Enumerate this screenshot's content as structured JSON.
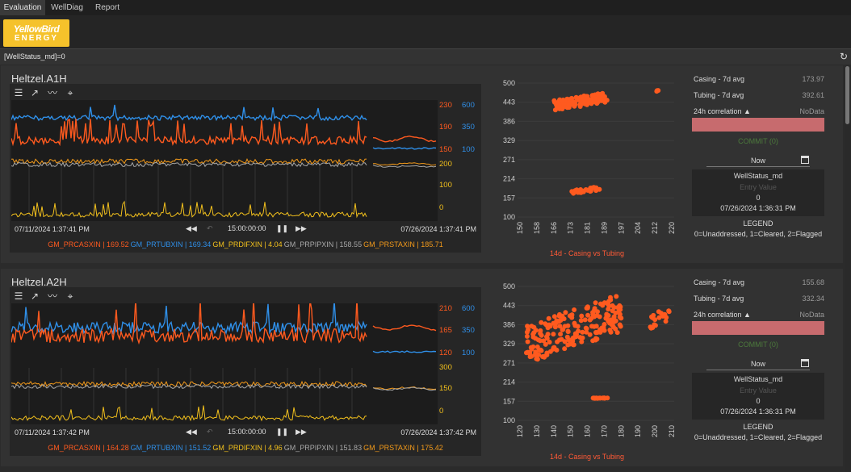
{
  "tabs": [
    {
      "label": "Evaluation",
      "active": true
    },
    {
      "label": "WellDiag",
      "active": false
    },
    {
      "label": "Report",
      "active": false
    }
  ],
  "logo": {
    "line1": "YellowBird",
    "line2": "ENERGY"
  },
  "filter": {
    "text": "[WellStatus_md]=0"
  },
  "colors": {
    "casing": "#ff5a1f",
    "tubing": "#2f8fe8",
    "difference": "#f2c01c",
    "pip": "#a8a8a8",
    "static": "#f39a1a"
  },
  "wells": [
    {
      "name": "Heltzel.A1H",
      "axis_red": [
        "230",
        "190",
        "150"
      ],
      "axis_blue": [
        "600",
        "350",
        "100"
      ],
      "axis_yel": [
        "200",
        "100",
        "0"
      ],
      "date_start": "07/11/2024  1:37:41 PM",
      "date_end": "07/26/2024  1:37:41 PM",
      "duration": "15:00:00:00",
      "legend": [
        {
          "text": "GM_PRCASXIN | 169.52",
          "color": "#ff5a1f"
        },
        {
          "text": "GM_PRTUBXIN | 169.34",
          "color": "#2f8fe8"
        },
        {
          "text": "GM_PRDIFXIN | 4.04",
          "color": "#f2c01c"
        },
        {
          "text": "GM_PRPIPXIN | 158.55",
          "color": "#a8a8a8"
        },
        {
          "text": "GM_PRSTAXIN | 185.71",
          "color": "#f39a1a"
        }
      ],
      "stats": [
        {
          "k": "Casing - 7d avg",
          "v": "173.97"
        },
        {
          "k": "Tubing - 7d avg",
          "v": "392.61"
        },
        {
          "k": "24h correlation ▲",
          "v": "NoData"
        }
      ],
      "commit": "COMMIT (0)",
      "now": "Now",
      "ws_label": "WellStatus_md",
      "ws_entry": "Entry Value",
      "ws_value": "0",
      "ws_date": "07/26/2024 1:36:31 PM",
      "legend_title": "LEGEND",
      "legend_text": "0=Unaddressed, 1=Cleared, 2=Flagged",
      "scatter_title": "14d - Casing vs Tubing",
      "chart_data": {
        "type": "scatter",
        "title": "14d - Casing vs Tubing",
        "x_ticks": [
          "150",
          "158",
          "166",
          "173",
          "181",
          "189",
          "197",
          "204",
          "212",
          "220"
        ],
        "y_ticks": [
          "500",
          "443",
          "386",
          "329",
          "271",
          "214",
          "157",
          "100"
        ],
        "xlim": [
          150,
          220
        ],
        "ylim": [
          100,
          500
        ],
        "clusters": [
          {
            "x": [
              166,
              190
            ],
            "y": [
              420,
              470
            ],
            "n": 120
          },
          {
            "x": [
              174,
              187
            ],
            "y": [
              170,
              190
            ],
            "n": 30
          },
          {
            "x": [
              211,
              213
            ],
            "y": [
              470,
              480
            ],
            "n": 3
          }
        ]
      }
    },
    {
      "name": "Heltzel.A2H",
      "axis_red": [
        "210",
        "165",
        "120"
      ],
      "axis_blue": [
        "600",
        "350",
        "100"
      ],
      "axis_yel": [
        "300",
        "150",
        "0"
      ],
      "date_start": "07/11/2024  1:37:42 PM",
      "date_end": "07/26/2024  1:37:42 PM",
      "duration": "15:00:00:00",
      "legend": [
        {
          "text": "GM_PRCASXIN | 164.28",
          "color": "#ff5a1f"
        },
        {
          "text": "GM_PRTUBXIN | 151.52",
          "color": "#2f8fe8"
        },
        {
          "text": "GM_PRDIFXIN | 4.96",
          "color": "#f2c01c"
        },
        {
          "text": "GM_PRPIPXIN | 151.83",
          "color": "#a8a8a8"
        },
        {
          "text": "GM_PRSTAXIN | 175.42",
          "color": "#f39a1a"
        }
      ],
      "stats": [
        {
          "k": "Casing - 7d avg",
          "v": "155.68"
        },
        {
          "k": "Tubing - 7d avg",
          "v": "332.34"
        },
        {
          "k": "24h correlation ▲",
          "v": "NoData"
        }
      ],
      "commit": "COMMIT (0)",
      "now": "Now",
      "ws_label": "WellStatus_md",
      "ws_entry": "Entry Value",
      "ws_value": "0",
      "ws_date": "07/26/2024 1:36:31 PM",
      "legend_title": "LEGEND",
      "legend_text": "0=Unaddressed, 1=Cleared, 2=Flagged",
      "scatter_title": "14d - Casing vs Tubing",
      "chart_data": {
        "type": "scatter",
        "title": "14d - Casing vs Tubing",
        "x_ticks": [
          "120",
          "130",
          "140",
          "150",
          "160",
          "170",
          "180",
          "190",
          "200",
          "210"
        ],
        "y_ticks": [
          "500",
          "443",
          "386",
          "329",
          "271",
          "214",
          "157",
          "100"
        ],
        "xlim": [
          120,
          210
        ],
        "ylim": [
          100,
          500
        ],
        "clusters": [
          {
            "x": [
              125,
              180
            ],
            "y": [
              280,
              470
            ],
            "n": 200
          },
          {
            "x": [
              163,
              172
            ],
            "y": [
              165,
              168
            ],
            "n": 15
          },
          {
            "x": [
              195,
              208
            ],
            "y": [
              370,
              440
            ],
            "n": 20
          }
        ]
      }
    }
  ]
}
